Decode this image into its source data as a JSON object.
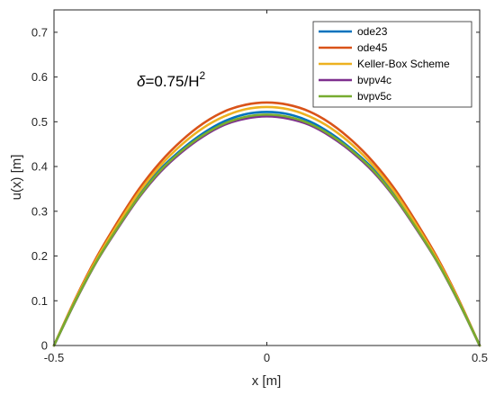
{
  "chart_data": {
    "type": "line",
    "title": "",
    "xlabel": "x [m]",
    "ylabel": "u(x) [m]",
    "xlim": [
      -0.5,
      0.5
    ],
    "ylim": [
      0,
      0.75
    ],
    "xticks": [
      -0.5,
      0,
      0.5
    ],
    "xtick_labels": [
      "-0.5",
      "0",
      "0.5"
    ],
    "yticks": [
      0,
      0.1,
      0.2,
      0.3,
      0.4,
      0.5,
      0.6,
      0.7
    ],
    "ytick_labels": [
      "0",
      "0.1",
      "0.2",
      "0.3",
      "0.4",
      "0.5",
      "0.6",
      "0.7"
    ],
    "grid": false,
    "legend_position": "top-right",
    "annotation": {
      "delta": "δ",
      "text": "=0.75/H",
      "superscript": "2"
    },
    "x": [
      -0.5,
      -0.45,
      -0.4,
      -0.35,
      -0.3,
      -0.25,
      -0.2,
      -0.15,
      -0.1,
      -0.05,
      0,
      0.05,
      0.1,
      0.15,
      0.2,
      0.25,
      0.3,
      0.35,
      0.4,
      0.45,
      0.5
    ],
    "series": [
      {
        "name": "ode23",
        "color": "#0072BD",
        "values": [
          0,
          0.1,
          0.19,
          0.266,
          0.336,
          0.394,
          0.438,
          0.474,
          0.501,
          0.517,
          0.522,
          0.517,
          0.501,
          0.474,
          0.438,
          0.394,
          0.336,
          0.266,
          0.19,
          0.1,
          0
        ]
      },
      {
        "name": "ode45",
        "color": "#D95319",
        "values": [
          0,
          0.104,
          0.197,
          0.277,
          0.35,
          0.41,
          0.458,
          0.496,
          0.523,
          0.538,
          0.543,
          0.538,
          0.523,
          0.496,
          0.458,
          0.41,
          0.35,
          0.277,
          0.197,
          0.104,
          0
        ]
      },
      {
        "name": "Keller-Box Scheme",
        "color": "#EDB120",
        "values": [
          0,
          0.102,
          0.193,
          0.271,
          0.343,
          0.402,
          0.449,
          0.486,
          0.512,
          0.528,
          0.533,
          0.528,
          0.512,
          0.486,
          0.449,
          0.402,
          0.343,
          0.271,
          0.193,
          0.102,
          0
        ]
      },
      {
        "name": "bvpv4c",
        "color": "#7E2F8E",
        "values": [
          0,
          0.098,
          0.187,
          0.262,
          0.331,
          0.388,
          0.432,
          0.467,
          0.493,
          0.507,
          0.512,
          0.507,
          0.493,
          0.467,
          0.432,
          0.388,
          0.331,
          0.262,
          0.187,
          0.098,
          0
        ]
      },
      {
        "name": "bvpv5c",
        "color": "#77AC30",
        "values": [
          0,
          0.099,
          0.188,
          0.264,
          0.333,
          0.391,
          0.435,
          0.47,
          0.496,
          0.511,
          0.516,
          0.511,
          0.496,
          0.47,
          0.435,
          0.391,
          0.333,
          0.264,
          0.188,
          0.099,
          0
        ]
      }
    ]
  }
}
